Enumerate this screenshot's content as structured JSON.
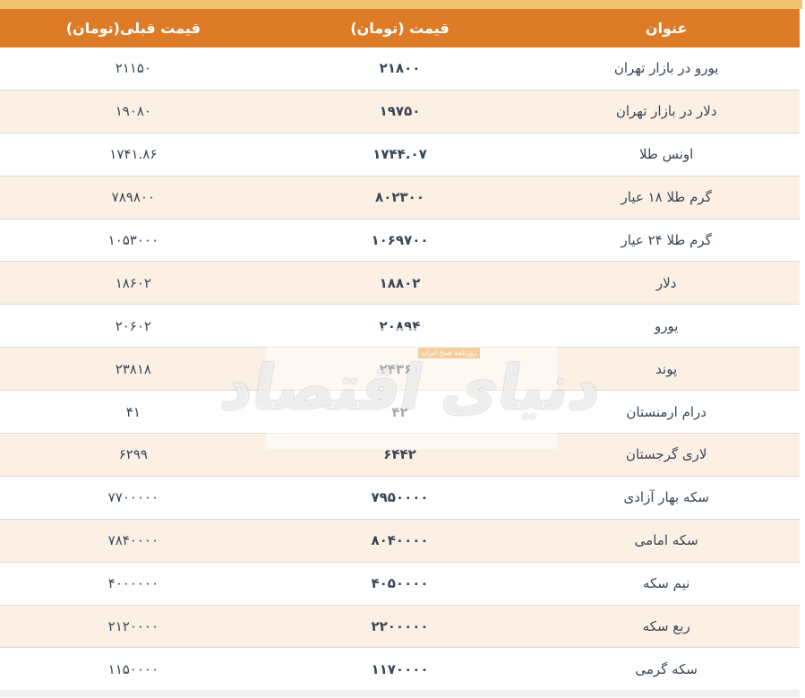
{
  "chart_data": {
    "type": "table",
    "direction": "rtl",
    "header": {
      "title": "عنوان",
      "price": "قیمت (تومان)",
      "prev": "قیمت قبلی(تومان)"
    },
    "rows": [
      {
        "title": "یورو در بازار تهران",
        "price_fa": "۲۱۸۰۰",
        "price": 21800,
        "prev_fa": "۲۱۱۵۰",
        "prev": 21150
      },
      {
        "title": "دلار در بازار تهران",
        "price_fa": "۱۹۷۵۰",
        "price": 19750,
        "prev_fa": "۱۹۰۸۰",
        "prev": 19080
      },
      {
        "title": "اونس طلا",
        "price_fa": "۱۷۴۴.۰۷",
        "price": 1744.07,
        "prev_fa": "۱۷۴۱.۸۶",
        "prev": 1741.86
      },
      {
        "title": "گرم طلا ۱۸ عیار",
        "price_fa": "۸۰۲۳۰۰",
        "price": 802300,
        "prev_fa": "۷۸۹۸۰۰",
        "prev": 789800
      },
      {
        "title": "گرم طلا ۲۴ عیار",
        "price_fa": "۱۰۶۹۷۰۰",
        "price": 1069700,
        "prev_fa": "۱۰۵۳۰۰۰",
        "prev": 1053000
      },
      {
        "title": "دلار",
        "price_fa": "۱۸۸۰۲",
        "price": 18802,
        "prev_fa": "۱۸۶۰۲",
        "prev": 18602
      },
      {
        "title": "یورو",
        "price_fa": "۲۰۸۹۴",
        "price": 20894,
        "prev_fa": "۲۰۶۰۲",
        "prev": 20602
      },
      {
        "title": "پوند",
        "price_fa": "۲۴۳۶۱",
        "price": 24361,
        "prev_fa": "۲۳۸۱۸",
        "prev": 23818
      },
      {
        "title": "درام ارمنستان",
        "price_fa": "۴۲",
        "price": 42,
        "prev_fa": "۴۱",
        "prev": 41
      },
      {
        "title": "لاری گرجستان",
        "price_fa": "۶۴۴۲",
        "price": 6442,
        "prev_fa": "۶۲۹۹",
        "prev": 6299
      },
      {
        "title": "سکه بهار آزادی",
        "price_fa": "۷۹۵۰۰۰۰",
        "price": 7950000,
        "prev_fa": "۷۷۰۰۰۰۰",
        "prev": 7700000
      },
      {
        "title": "سکه امامی",
        "price_fa": "۸۰۴۰۰۰۰",
        "price": 8040000,
        "prev_fa": "۷۸۴۰۰۰۰",
        "prev": 7840000
      },
      {
        "title": "نیم سکه",
        "price_fa": "۴۰۵۰۰۰۰",
        "price": 4050000,
        "prev_fa": "۴۰۰۰۰۰۰",
        "prev": 4000000
      },
      {
        "title": "ربع سکه",
        "price_fa": "۲۲۰۰۰۰۰",
        "price": 2200000,
        "prev_fa": "۲۱۲۰۰۰۰",
        "prev": 2120000
      },
      {
        "title": "سکه گرمی",
        "price_fa": "۱۱۷۰۰۰۰",
        "price": 1170000,
        "prev_fa": "۱۱۵۰۰۰۰",
        "prev": 1150000
      }
    ],
    "colors": {
      "header_bg": "#DE7B26",
      "top_strip": "#F1C46F",
      "row_alt_bg": "#FCF0E4",
      "row_bg": "#FFFFFF",
      "separator": "#D9D9D9",
      "text": "#3A4556",
      "header_text": "#FFFFFF",
      "bottom_strip": "#F0F0F0"
    },
    "legend_position": "none",
    "grid": "row-separators-only"
  },
  "watermark": {
    "logo_text": "دنیای اقتصاد",
    "badge_text": "روزنامه صبح ایران"
  }
}
